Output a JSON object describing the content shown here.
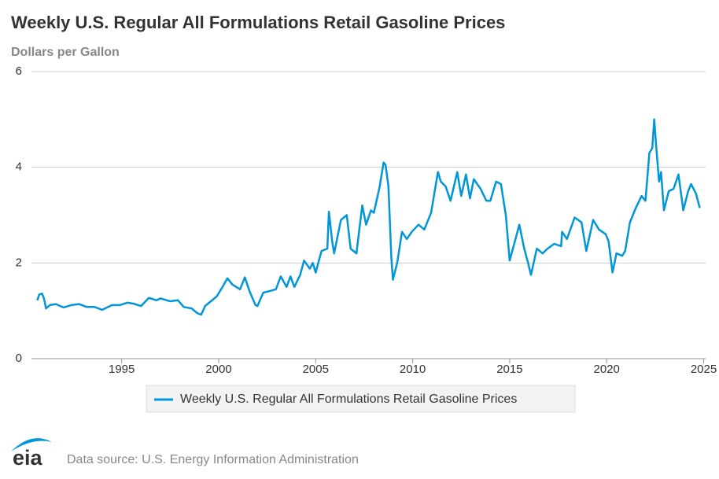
{
  "chart_data": {
    "type": "line",
    "title": "Weekly U.S. Regular All Formulations Retail Gasoline Prices",
    "subtitle": "Dollars per Gallon",
    "source": "Data source: U.S. Energy Information Administration",
    "logo_text": "eia",
    "x": [
      1990.65,
      1990.75,
      1990.9,
      1991.0,
      1991.1,
      1991.3,
      1991.6,
      1992.0,
      1992.4,
      1992.8,
      1993.2,
      1993.6,
      1994.0,
      1994.5,
      1994.9,
      1995.3,
      1995.6,
      1996.0,
      1996.4,
      1996.8,
      1997.0,
      1997.5,
      1997.9,
      1998.2,
      1998.6,
      1998.9,
      1999.1,
      1999.3,
      1999.6,
      1999.9,
      2000.2,
      2000.45,
      2000.7,
      2000.9,
      2001.1,
      2001.35,
      2001.6,
      2001.9,
      2002.0,
      2002.3,
      2002.7,
      2002.95,
      2003.2,
      2003.5,
      2003.7,
      2003.9,
      2004.2,
      2004.4,
      2004.7,
      2004.85,
      2005.0,
      2005.3,
      2005.6,
      2005.68,
      2005.85,
      2005.95,
      2006.3,
      2006.6,
      2006.8,
      2006.95,
      2007.1,
      2007.4,
      2007.6,
      2007.85,
      2008.0,
      2008.3,
      2008.5,
      2008.6,
      2008.75,
      2008.9,
      2008.98,
      2009.2,
      2009.45,
      2009.7,
      2009.95,
      2010.3,
      2010.6,
      2010.95,
      2011.3,
      2011.45,
      2011.7,
      2011.95,
      2012.3,
      2012.5,
      2012.75,
      2012.95,
      2013.15,
      2013.5,
      2013.8,
      2014.0,
      2014.3,
      2014.55,
      2014.8,
      2015.0,
      2015.3,
      2015.5,
      2015.75,
      2015.95,
      2016.1,
      2016.4,
      2016.7,
      2016.95,
      2017.3,
      2017.65,
      2017.7,
      2017.95,
      2018.35,
      2018.7,
      2018.95,
      2019.3,
      2019.6,
      2019.95,
      2020.1,
      2020.3,
      2020.5,
      2020.8,
      2020.95,
      2021.2,
      2021.5,
      2021.8,
      2022.0,
      2022.2,
      2022.35,
      2022.45,
      2022.6,
      2022.7,
      2022.8,
      2022.95,
      2023.2,
      2023.45,
      2023.7,
      2023.95,
      2024.2,
      2024.35,
      2024.6,
      2024.8
    ],
    "series": [
      {
        "name": "Weekly U.S. Regular All Formulations Retail Gasoline Prices",
        "color": "#0096d7",
        "values": [
          1.22,
          1.34,
          1.36,
          1.25,
          1.05,
          1.12,
          1.14,
          1.07,
          1.12,
          1.14,
          1.08,
          1.08,
          1.02,
          1.12,
          1.12,
          1.17,
          1.15,
          1.1,
          1.27,
          1.22,
          1.26,
          1.2,
          1.22,
          1.08,
          1.05,
          0.95,
          0.92,
          1.1,
          1.2,
          1.3,
          1.5,
          1.68,
          1.55,
          1.5,
          1.45,
          1.7,
          1.4,
          1.12,
          1.1,
          1.38,
          1.42,
          1.45,
          1.72,
          1.5,
          1.72,
          1.5,
          1.75,
          2.05,
          1.88,
          2.0,
          1.8,
          2.25,
          2.3,
          3.07,
          2.45,
          2.2,
          2.9,
          3.0,
          2.3,
          2.25,
          2.2,
          3.2,
          2.8,
          3.1,
          3.05,
          3.6,
          4.1,
          4.05,
          3.6,
          2.1,
          1.65,
          2.0,
          2.65,
          2.5,
          2.65,
          2.8,
          2.7,
          3.05,
          3.9,
          3.7,
          3.6,
          3.3,
          3.9,
          3.4,
          3.85,
          3.35,
          3.75,
          3.55,
          3.3,
          3.3,
          3.7,
          3.65,
          3.0,
          2.05,
          2.5,
          2.8,
          2.3,
          2.0,
          1.75,
          2.3,
          2.2,
          2.3,
          2.4,
          2.35,
          2.65,
          2.5,
          2.95,
          2.85,
          2.25,
          2.9,
          2.7,
          2.6,
          2.45,
          1.8,
          2.2,
          2.15,
          2.25,
          2.85,
          3.15,
          3.4,
          3.3,
          4.3,
          4.4,
          5.0,
          4.2,
          3.7,
          3.9,
          3.1,
          3.5,
          3.55,
          3.85,
          3.1,
          3.5,
          3.65,
          3.45,
          3.15
        ]
      }
    ],
    "xlim": [
      1990.35,
      2025.1
    ],
    "xticks": [
      1995,
      2000,
      2005,
      2010,
      2015,
      2020,
      2025
    ],
    "ylim": [
      0,
      6
    ],
    "yticks": [
      0,
      2,
      4,
      6
    ],
    "grid": true,
    "legend": "bottom"
  }
}
